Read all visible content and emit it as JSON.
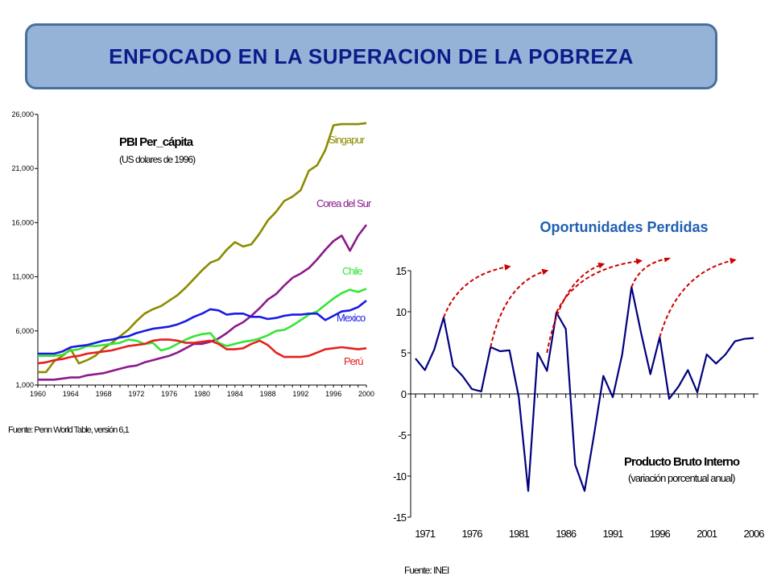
{
  "banner": {
    "title": "ENFOCADO EN LA SUPERACION DE LA POBREZA"
  },
  "right_heading": "Oportunidades Perdidas",
  "chart_data": [
    {
      "type": "line",
      "title": "PBI Per_cápita",
      "subtitle": "(US dolares de 1996)",
      "source": "Fuente: Penn World Table, versión 6,1",
      "xlim": [
        1960,
        2000
      ],
      "ylim": [
        1000,
        26000
      ],
      "x_ticks": [
        1960,
        1964,
        1968,
        1972,
        1976,
        1980,
        1984,
        1988,
        1992,
        1996,
        2000
      ],
      "y_ticks": [
        1000,
        6000,
        11000,
        16000,
        21000,
        26000
      ],
      "y_tick_labels": [
        "1,000",
        "6,000",
        "11,000",
        "16,000",
        "21,000",
        "26,000"
      ],
      "grid": false,
      "legend": "labels at line ends",
      "x": [
        1960,
        1961,
        1962,
        1963,
        1964,
        1965,
        1966,
        1967,
        1968,
        1969,
        1970,
        1971,
        1972,
        1973,
        1974,
        1975,
        1976,
        1977,
        1978,
        1979,
        1980,
        1981,
        1982,
        1983,
        1984,
        1985,
        1986,
        1987,
        1988,
        1989,
        1990,
        1991,
        1992,
        1993,
        1994,
        1995,
        1996,
        1997,
        1998,
        1999,
        2000
      ],
      "series": [
        {
          "name": "Singapur",
          "color": "#8b8b00",
          "values": [
            2200,
            2200,
            3200,
            3700,
            4300,
            3000,
            3300,
            3700,
            4400,
            4900,
            5500,
            6100,
            6900,
            7600,
            8000,
            8300,
            8800,
            9300,
            10000,
            10800,
            11600,
            12300,
            12600,
            13500,
            14200,
            13800,
            14000,
            15000,
            16200,
            17000,
            18000,
            18400,
            19000,
            20800,
            21300,
            22700,
            25000,
            25100,
            25100,
            25100,
            25200
          ]
        },
        {
          "name": "Corea del Sur",
          "color": "#8b1a8b",
          "values": [
            1500,
            1500,
            1500,
            1600,
            1700,
            1700,
            1900,
            2000,
            2100,
            2300,
            2500,
            2700,
            2800,
            3100,
            3300,
            3500,
            3700,
            4000,
            4400,
            4800,
            4800,
            5000,
            5300,
            5800,
            6400,
            6800,
            7400,
            8100,
            8900,
            9400,
            10200,
            10900,
            11300,
            11800,
            12600,
            13500,
            14300,
            14800,
            13400,
            14800,
            15800
          ]
        },
        {
          "name": "Chile",
          "color": "#33e633",
          "values": [
            3700,
            3700,
            3700,
            3800,
            4200,
            4300,
            4600,
            4600,
            4700,
            4800,
            4900,
            5200,
            5100,
            4800,
            4900,
            4200,
            4400,
            4800,
            5200,
            5500,
            5700,
            5800,
            4900,
            4600,
            4800,
            5000,
            5100,
            5300,
            5600,
            6000,
            6100,
            6500,
            7000,
            7500,
            7800,
            8400,
            9000,
            9500,
            9800,
            9600,
            9900
          ]
        },
        {
          "name": "Mexico",
          "color": "#1a1ae6",
          "values": [
            3900,
            3900,
            3900,
            4100,
            4500,
            4600,
            4700,
            4900,
            5100,
            5200,
            5400,
            5500,
            5800,
            6000,
            6200,
            6300,
            6400,
            6600,
            6900,
            7300,
            7600,
            8000,
            7900,
            7500,
            7600,
            7600,
            7300,
            7300,
            7100,
            7200,
            7400,
            7500,
            7500,
            7600,
            7600,
            7000,
            7400,
            7800,
            7900,
            8200,
            8800
          ]
        },
        {
          "name": "Perú",
          "color": "#e62020",
          "values": [
            3000,
            3100,
            3300,
            3400,
            3600,
            3700,
            3900,
            4000,
            4100,
            4200,
            4400,
            4600,
            4700,
            4800,
            5100,
            5200,
            5200,
            5100,
            4900,
            4900,
            5000,
            5100,
            4800,
            4300,
            4300,
            4400,
            4800,
            5100,
            4700,
            4000,
            3600,
            3600,
            3600,
            3700,
            4000,
            4300,
            4400,
            4500,
            4400,
            4300,
            4400
          ]
        }
      ]
    },
    {
      "type": "line",
      "title": "Producto Bruto Interno",
      "subtitle": "(variación porcentual anual)",
      "source": "Fuente: INEI",
      "xlim": [
        1970,
        2006
      ],
      "ylim": [
        -15,
        15
      ],
      "x_ticks": [
        1971,
        1976,
        1981,
        1986,
        1991,
        1996,
        2001,
        2006
      ],
      "y_ticks": [
        15,
        10,
        5,
        0,
        -5,
        -10,
        -15
      ],
      "grid": false,
      "series": [
        {
          "color": "#000080",
          "x": [
            1970,
            1971,
            1972,
            1973,
            1974,
            1975,
            1976,
            1977,
            1978,
            1979,
            1980,
            1981,
            1982,
            1983,
            1984,
            1985,
            1986,
            1987,
            1988,
            1989,
            1990,
            1991,
            1992,
            1993,
            1994,
            1995,
            1996,
            1997,
            1998,
            1999,
            2000,
            2001,
            2002,
            2003,
            2004,
            2005,
            2006
          ],
          "values": [
            4.3,
            2.9,
            5.4,
            9.3,
            3.4,
            2.2,
            0.6,
            0.3,
            5.7,
            5.2,
            5.3,
            -0.4,
            -11.8,
            5.0,
            2.8,
            9.9,
            7.9,
            -8.6,
            -11.8,
            -5.0,
            2.2,
            -0.4,
            4.8,
            13.0,
            7.5,
            2.4,
            6.9,
            -0.6,
            0.9,
            2.9,
            0.2,
            4.8,
            3.7,
            4.8,
            6.4,
            6.7,
            6.8
          ]
        }
      ],
      "annotations": [
        {
          "type": "dashed-arrow",
          "color": "#cc0000",
          "from": [
            1973,
            9.3
          ],
          "to": [
            1980,
            15.5
          ]
        },
        {
          "type": "dashed-arrow",
          "color": "#cc0000",
          "from": [
            1978,
            5.7
          ],
          "to": [
            1984,
            15.0
          ]
        },
        {
          "type": "dashed-arrow",
          "color": "#cc0000",
          "from": [
            1984,
            5.0
          ],
          "to": [
            1990,
            15.8
          ]
        },
        {
          "type": "dashed-arrow",
          "color": "#cc0000",
          "from": [
            1985,
            9.9
          ],
          "to": [
            1994,
            16.2
          ]
        },
        {
          "type": "dashed-arrow",
          "color": "#cc0000",
          "from": [
            1993,
            13.0
          ],
          "to": [
            1997,
            16.5
          ]
        },
        {
          "type": "dashed-arrow",
          "color": "#cc0000",
          "from": [
            1996,
            6.9
          ],
          "to": [
            2004,
            16.3
          ]
        }
      ]
    }
  ]
}
